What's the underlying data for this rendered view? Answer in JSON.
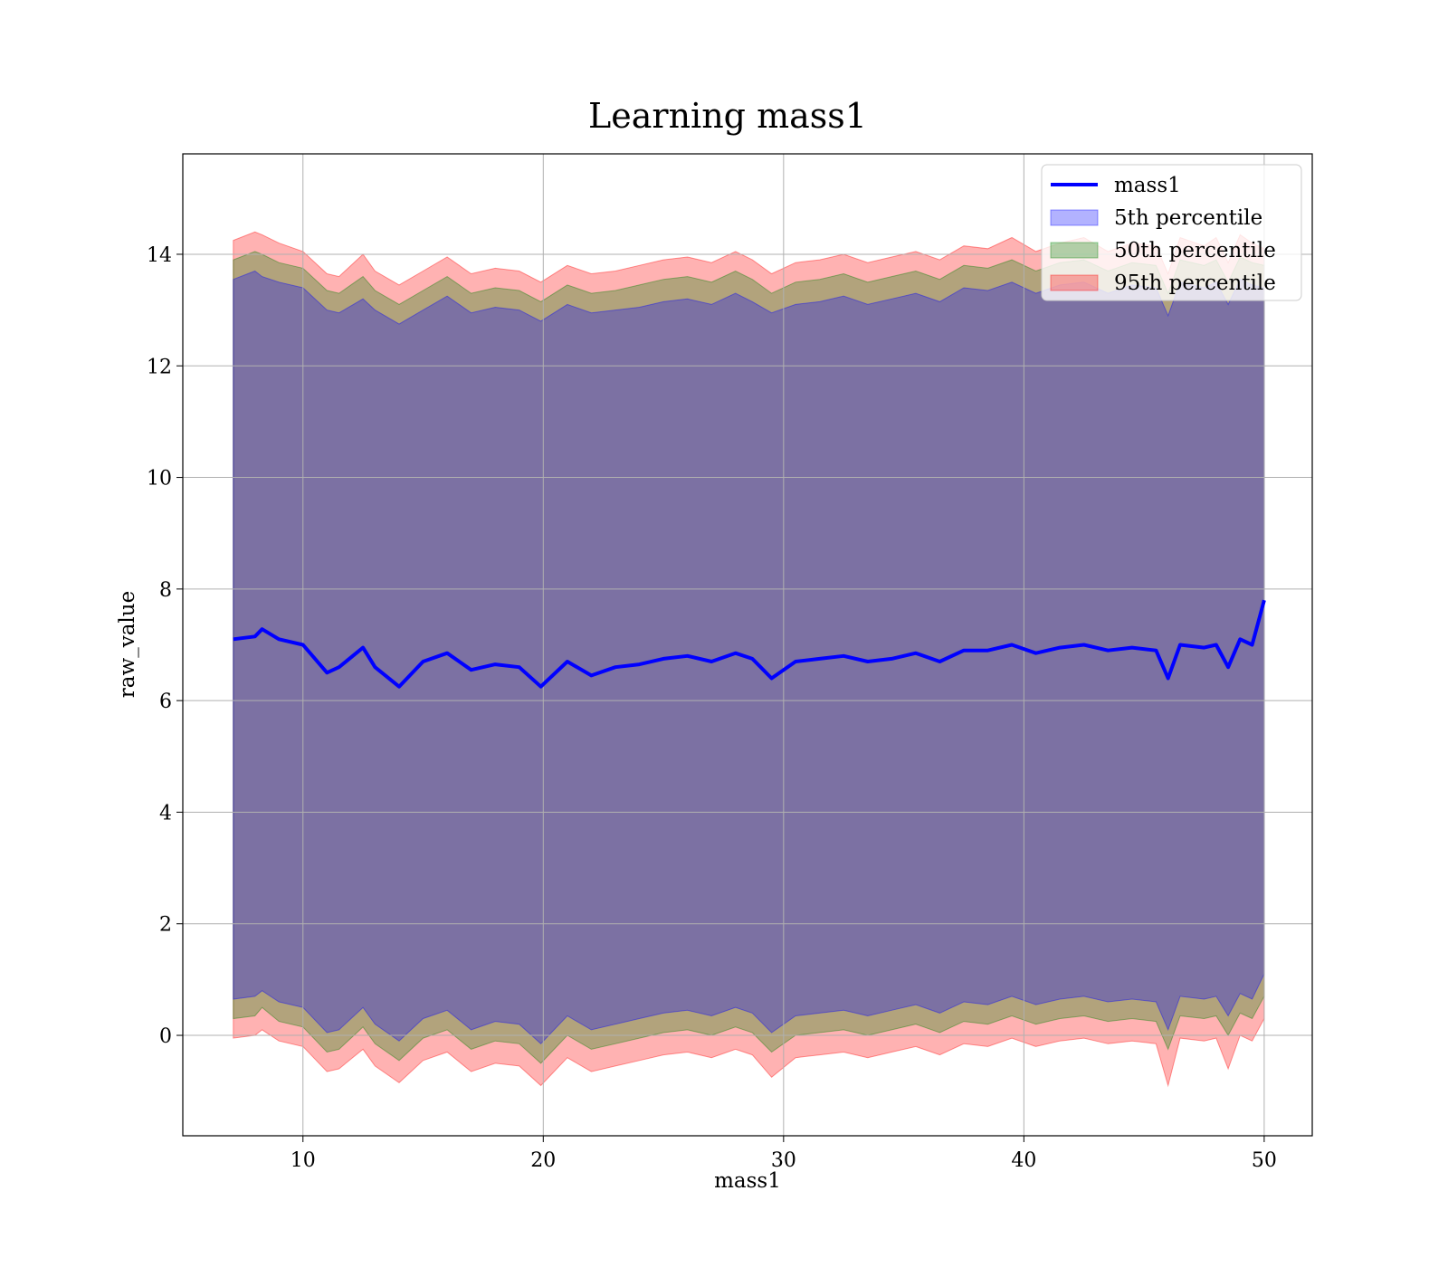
{
  "chart_data": {
    "type": "area",
    "title": "Learning mass1",
    "xlabel": "mass1",
    "ylabel": "raw_value",
    "xlim": [
      5,
      52
    ],
    "ylim": [
      -1.8,
      15.8
    ],
    "x_ticks": [
      10,
      20,
      30,
      40,
      50
    ],
    "y_ticks": [
      0,
      2,
      4,
      6,
      8,
      10,
      12,
      14
    ],
    "grid": true,
    "legend_position": "top-right",
    "legend": [
      {
        "label": "mass1",
        "kind": "line",
        "color": "#0000ff"
      },
      {
        "label": "5th percentile",
        "kind": "band",
        "color": "#0000ff"
      },
      {
        "label": "50th percentile",
        "kind": "band",
        "color": "#008000"
      },
      {
        "label": "95th percentile",
        "kind": "band",
        "color": "#ff0000"
      }
    ],
    "x": [
      7.1,
      8.0,
      8.3,
      9.0,
      10.0,
      11.0,
      11.5,
      12.5,
      13.0,
      14.0,
      15.0,
      16.0,
      17.0,
      18.0,
      19.0,
      19.9,
      21.0,
      22.0,
      23.0,
      24.0,
      25.0,
      26.0,
      27.0,
      28.0,
      28.7,
      29.5,
      30.5,
      31.5,
      32.5,
      33.5,
      34.5,
      35.5,
      36.5,
      37.5,
      38.5,
      39.5,
      40.5,
      41.5,
      42.5,
      43.5,
      44.5,
      45.5,
      46.0,
      46.5,
      47.5,
      48.0,
      48.5,
      49.0,
      49.5,
      50.0
    ],
    "series": [
      {
        "name": "mass1",
        "color": "#0000ff",
        "values": [
          7.1,
          7.15,
          7.28,
          7.1,
          7.0,
          6.5,
          6.6,
          6.95,
          6.6,
          6.25,
          6.7,
          6.85,
          6.55,
          6.65,
          6.6,
          6.25,
          6.7,
          6.45,
          6.6,
          6.65,
          6.75,
          6.8,
          6.7,
          6.85,
          6.75,
          6.4,
          6.7,
          6.75,
          6.8,
          6.7,
          6.75,
          6.85,
          6.7,
          6.9,
          6.9,
          7.0,
          6.85,
          6.95,
          7.0,
          6.9,
          6.95,
          6.9,
          6.4,
          7.0,
          6.95,
          7.0,
          6.6,
          7.1,
          7.0,
          7.8
        ]
      },
      {
        "name": "5th percentile",
        "color": "#0000ff",
        "upper": [
          13.55,
          13.7,
          13.6,
          13.5,
          13.4,
          13.0,
          12.95,
          13.2,
          13.0,
          12.75,
          13.0,
          13.25,
          12.95,
          13.05,
          13.0,
          12.8,
          13.1,
          12.95,
          13.0,
          13.05,
          13.15,
          13.2,
          13.1,
          13.3,
          13.15,
          12.95,
          13.1,
          13.15,
          13.25,
          13.1,
          13.2,
          13.3,
          13.15,
          13.4,
          13.35,
          13.5,
          13.3,
          13.45,
          13.5,
          13.3,
          13.45,
          13.4,
          12.9,
          13.5,
          13.4,
          13.5,
          13.1,
          13.55,
          13.45,
          13.4
        ],
        "lower": [
          0.65,
          0.7,
          0.8,
          0.6,
          0.5,
          0.05,
          0.1,
          0.5,
          0.2,
          -0.1,
          0.3,
          0.45,
          0.1,
          0.25,
          0.2,
          -0.15,
          0.35,
          0.1,
          0.2,
          0.3,
          0.4,
          0.45,
          0.35,
          0.5,
          0.4,
          0.05,
          0.35,
          0.4,
          0.45,
          0.35,
          0.45,
          0.55,
          0.4,
          0.6,
          0.55,
          0.7,
          0.55,
          0.65,
          0.7,
          0.6,
          0.65,
          0.6,
          0.1,
          0.7,
          0.65,
          0.7,
          0.35,
          0.75,
          0.65,
          1.1
        ]
      },
      {
        "name": "50th percentile",
        "color": "#008000",
        "upper": [
          13.9,
          14.05,
          14.0,
          13.85,
          13.75,
          13.35,
          13.3,
          13.6,
          13.35,
          13.1,
          13.35,
          13.6,
          13.3,
          13.4,
          13.35,
          13.15,
          13.45,
          13.3,
          13.35,
          13.45,
          13.55,
          13.6,
          13.5,
          13.7,
          13.55,
          13.3,
          13.5,
          13.55,
          13.65,
          13.5,
          13.6,
          13.7,
          13.55,
          13.8,
          13.75,
          13.9,
          13.7,
          13.85,
          13.9,
          13.7,
          13.85,
          13.8,
          13.3,
          13.9,
          13.8,
          13.9,
          13.5,
          13.95,
          13.85,
          13.8
        ],
        "lower": [
          0.3,
          0.35,
          0.5,
          0.25,
          0.15,
          -0.3,
          -0.25,
          0.15,
          -0.15,
          -0.45,
          -0.05,
          0.1,
          -0.25,
          -0.1,
          -0.15,
          -0.5,
          0.0,
          -0.25,
          -0.15,
          -0.05,
          0.05,
          0.1,
          0.0,
          0.15,
          0.05,
          -0.3,
          0.0,
          0.05,
          0.1,
          0.0,
          0.1,
          0.2,
          0.05,
          0.25,
          0.2,
          0.35,
          0.2,
          0.3,
          0.35,
          0.25,
          0.3,
          0.25,
          -0.25,
          0.35,
          0.3,
          0.35,
          0.0,
          0.4,
          0.3,
          0.7
        ]
      },
      {
        "name": "95th percentile",
        "color": "#ff0000",
        "upper": [
          14.25,
          14.4,
          14.35,
          14.2,
          14.05,
          13.65,
          13.6,
          14.0,
          13.7,
          13.45,
          13.7,
          13.95,
          13.65,
          13.75,
          13.7,
          13.5,
          13.8,
          13.65,
          13.7,
          13.8,
          13.9,
          13.95,
          13.85,
          14.05,
          13.9,
          13.65,
          13.85,
          13.9,
          14.0,
          13.85,
          13.95,
          14.05,
          13.9,
          14.15,
          14.1,
          14.3,
          14.05,
          14.2,
          14.3,
          14.05,
          14.2,
          14.15,
          13.65,
          14.3,
          14.15,
          14.3,
          13.85,
          14.35,
          14.2,
          14.1
        ],
        "lower": [
          -0.05,
          0.0,
          0.1,
          -0.1,
          -0.2,
          -0.65,
          -0.6,
          -0.25,
          -0.55,
          -0.85,
          -0.45,
          -0.3,
          -0.65,
          -0.5,
          -0.55,
          -0.9,
          -0.4,
          -0.65,
          -0.55,
          -0.45,
          -0.35,
          -0.3,
          -0.4,
          -0.25,
          -0.35,
          -0.75,
          -0.4,
          -0.35,
          -0.3,
          -0.4,
          -0.3,
          -0.2,
          -0.35,
          -0.15,
          -0.2,
          -0.05,
          -0.2,
          -0.1,
          -0.05,
          -0.15,
          -0.1,
          -0.15,
          -0.9,
          -0.05,
          -0.1,
          -0.05,
          -0.6,
          0.0,
          -0.1,
          0.3
        ]
      }
    ]
  }
}
